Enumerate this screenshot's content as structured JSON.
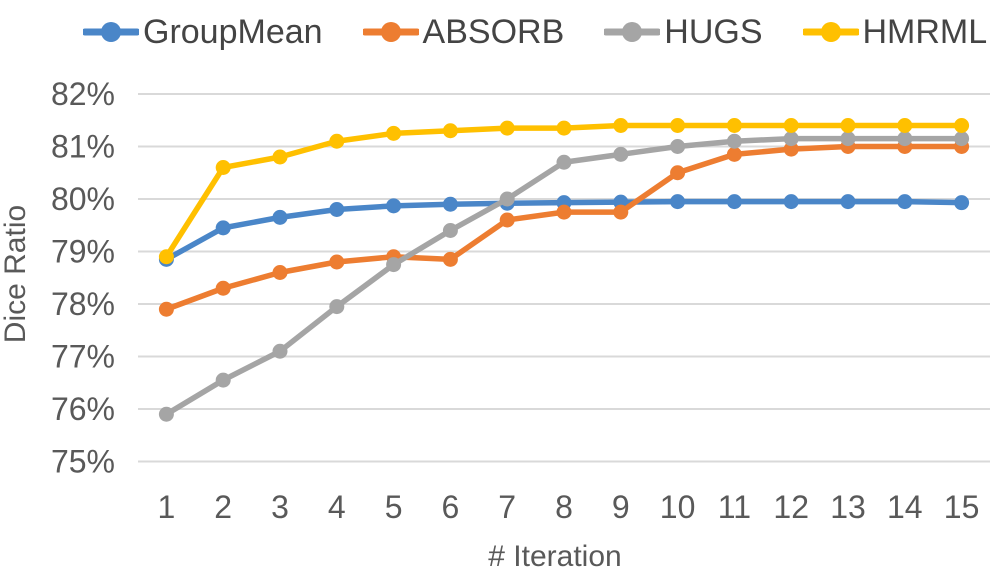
{
  "chart_data": {
    "type": "line",
    "title": "",
    "xlabel": "# Iteration",
    "ylabel": "Dice Ratio",
    "x": [
      1,
      2,
      3,
      4,
      5,
      6,
      7,
      8,
      9,
      10,
      11,
      12,
      13,
      14,
      15
    ],
    "ylim": [
      75,
      82
    ],
    "yticks": [
      75,
      76,
      77,
      78,
      79,
      80,
      81,
      82
    ],
    "ytick_suffix": "%",
    "grid": "horizontal",
    "gridline_color": "#d9d9d9",
    "tick_label_color": "#595959",
    "legend_position": "top",
    "marker": "circle",
    "series": [
      {
        "name": "GroupMean",
        "color": "#4a86c8",
        "values": [
          78.85,
          79.45,
          79.65,
          79.8,
          79.87,
          79.9,
          79.92,
          79.93,
          79.94,
          79.95,
          79.95,
          79.95,
          79.95,
          79.95,
          79.93
        ]
      },
      {
        "name": "ABSORB",
        "color": "#ed7d31",
        "values": [
          77.9,
          78.3,
          78.6,
          78.8,
          78.9,
          78.85,
          79.6,
          79.75,
          79.75,
          80.5,
          80.85,
          80.95,
          81.0,
          81.0,
          81.0
        ]
      },
      {
        "name": "HUGS",
        "color": "#a5a5a5",
        "values": [
          75.9,
          76.55,
          77.1,
          77.95,
          78.75,
          79.4,
          80.0,
          80.7,
          80.85,
          81.0,
          81.1,
          81.15,
          81.15,
          81.15,
          81.15
        ]
      },
      {
        "name": "HMRML",
        "color": "#ffc000",
        "values": [
          78.9,
          80.6,
          80.8,
          81.1,
          81.25,
          81.3,
          81.35,
          81.35,
          81.4,
          81.4,
          81.4,
          81.4,
          81.4,
          81.4,
          81.4
        ]
      }
    ]
  }
}
